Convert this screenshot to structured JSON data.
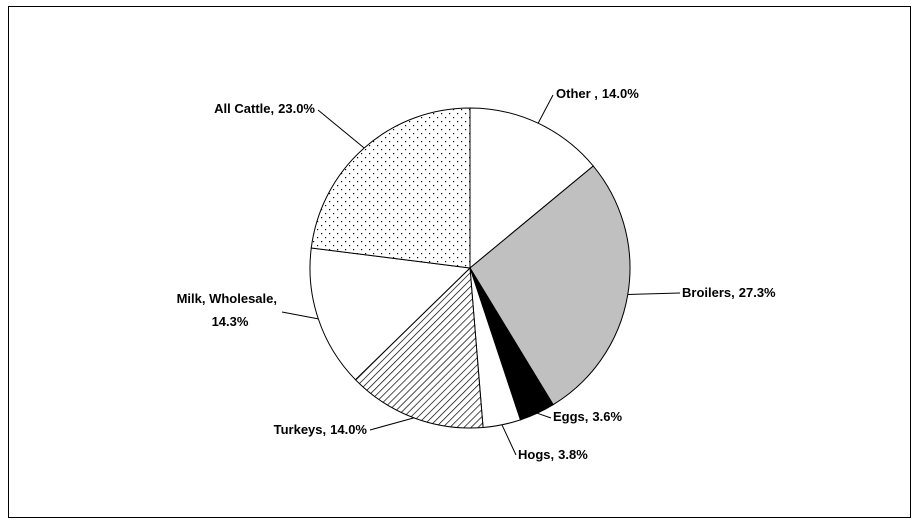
{
  "chart_data": {
    "type": "pie",
    "categories": [
      "Other ,",
      "Broilers,",
      "Eggs,",
      "Hogs,",
      "Turkeys,",
      "Milk, Wholesale,",
      "All Cattle,"
    ],
    "values": [
      14.0,
      27.3,
      3.6,
      3.8,
      14.0,
      14.3,
      23.0
    ],
    "value_labels": [
      "14.0%",
      "27.3%",
      "3.6%",
      "3.8%",
      "14.0%",
      "14.3%",
      "23.0%"
    ],
    "colors": [
      "#ffffff",
      "#c0c0c0",
      "#000000",
      "#ffffff",
      "hatch",
      "#ffffff",
      "dots"
    ]
  }
}
